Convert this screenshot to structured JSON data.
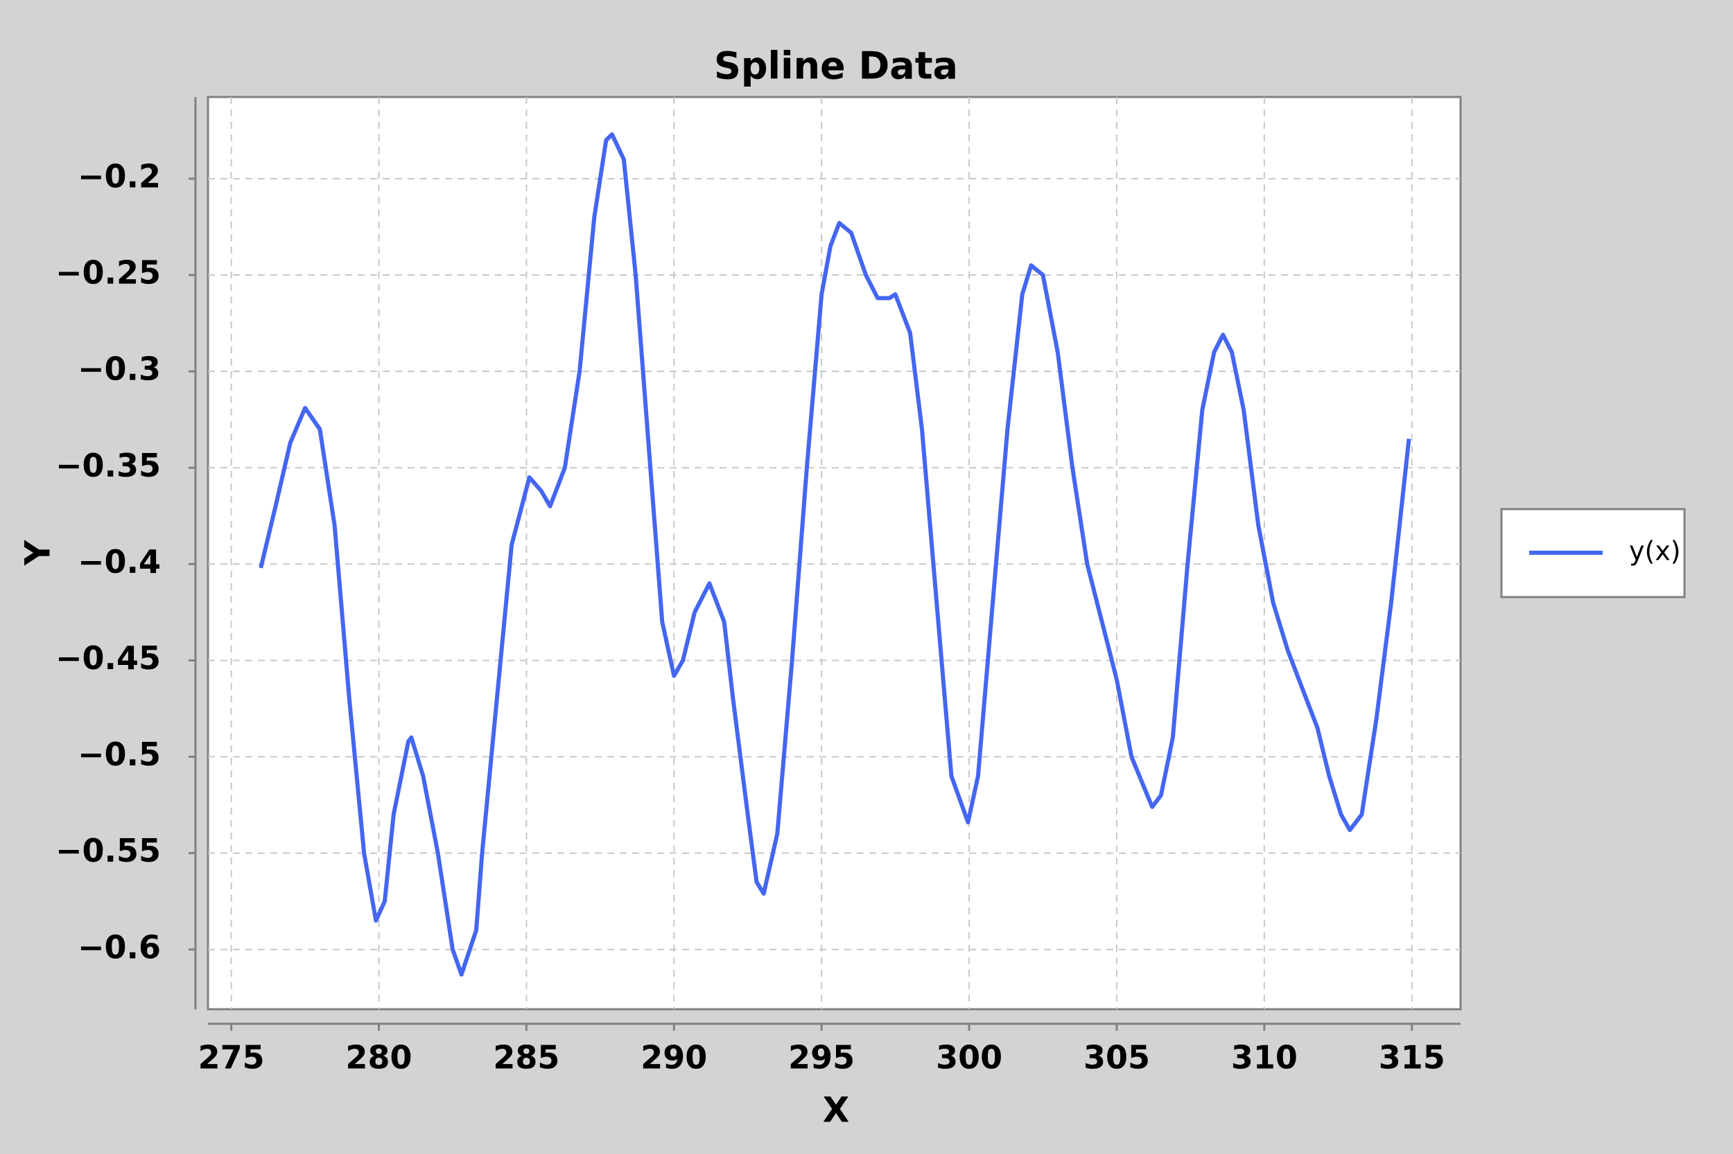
{
  "chart_data": {
    "type": "line",
    "title": "Spline Data",
    "x_label": "X",
    "y_label": "Y",
    "x": [
      276,
      276.5,
      277,
      277.5,
      278,
      278.5,
      279,
      279.5,
      279.9,
      280.2,
      280.5,
      281,
      281.1,
      281.5,
      282,
      282.5,
      282.8,
      283.3,
      283.5,
      284,
      284.5,
      285.1,
      285.5,
      285.8,
      286.3,
      286.8,
      287.3,
      287.7,
      287.9,
      288.3,
      288.7,
      289.2,
      289.6,
      290,
      290.3,
      290.7,
      291.2,
      291.7,
      292,
      292.5,
      292.8,
      293.04,
      293.5,
      294,
      294.5,
      295,
      295.3,
      295.6,
      296,
      296.5,
      296.9,
      297.3,
      297.5,
      298,
      298.4,
      298.9,
      299.4,
      299.96,
      300.3,
      300.8,
      301.3,
      301.8,
      302.1,
      302.5,
      303,
      303.5,
      304,
      304.5,
      305,
      305.5,
      306.2,
      306.5,
      306.9,
      307.4,
      307.9,
      308.3,
      308.6,
      308.9,
      309.3,
      309.8,
      310.3,
      310.8,
      311.3,
      311.8,
      312.2,
      312.6,
      312.9,
      313.3,
      313.8,
      314.3,
      314.9
    ],
    "series": [
      {
        "name": "y(x)",
        "color": "#4466f0",
        "values": [
          -0.402,
          -0.37,
          -0.337,
          -0.319,
          -0.33,
          -0.38,
          -0.47,
          -0.55,
          -0.585,
          -0.575,
          -0.53,
          -0.492,
          -0.49,
          -0.51,
          -0.55,
          -0.6,
          -0.613,
          -0.59,
          -0.55,
          -0.47,
          -0.39,
          -0.355,
          -0.362,
          -0.37,
          -0.35,
          -0.3,
          -0.22,
          -0.18,
          -0.177,
          -0.19,
          -0.25,
          -0.35,
          -0.43,
          -0.458,
          -0.45,
          -0.425,
          -0.41,
          -0.43,
          -0.47,
          -0.53,
          -0.565,
          -0.571,
          -0.54,
          -0.45,
          -0.35,
          -0.26,
          -0.235,
          -0.223,
          -0.228,
          -0.25,
          -0.262,
          -0.262,
          -0.26,
          -0.28,
          -0.33,
          -0.42,
          -0.51,
          -0.534,
          -0.51,
          -0.42,
          -0.33,
          -0.26,
          -0.245,
          -0.25,
          -0.29,
          -0.35,
          -0.4,
          -0.43,
          -0.46,
          -0.5,
          -0.526,
          -0.52,
          -0.49,
          -0.4,
          -0.32,
          -0.29,
          -0.281,
          -0.29,
          -0.32,
          -0.38,
          -0.42,
          -0.445,
          -0.465,
          -0.485,
          -0.51,
          -0.53,
          -0.538,
          -0.53,
          -0.48,
          -0.42,
          -0.335
        ]
      }
    ],
    "xlim": [
      274.21,
      316.65
    ],
    "ylim": [
      -0.631,
      -0.1576
    ],
    "xticks": [
      275,
      280,
      285,
      290,
      295,
      300,
      305,
      310,
      315
    ],
    "yticks": [
      {
        "value": -0.6,
        "label": "−0.6"
      },
      {
        "value": -0.55,
        "label": "−0.55"
      },
      {
        "value": -0.5,
        "label": "−0.5"
      },
      {
        "value": -0.45,
        "label": "−0.45"
      },
      {
        "value": -0.4,
        "label": "−0.4"
      },
      {
        "value": -0.35,
        "label": "−0.35"
      },
      {
        "value": -0.3,
        "label": "−0.3"
      },
      {
        "value": -0.25,
        "label": "−0.25"
      },
      {
        "value": -0.2,
        "label": "−0.2"
      }
    ],
    "grid": true,
    "legend": "right"
  }
}
